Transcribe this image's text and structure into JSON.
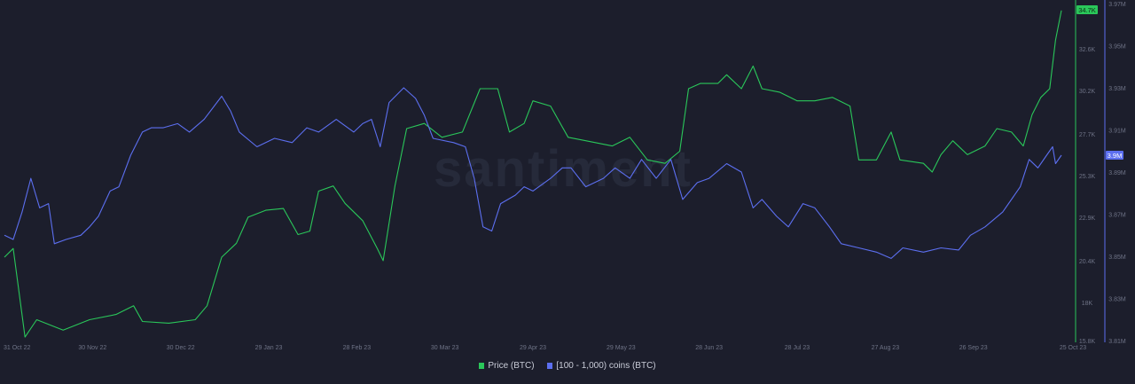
{
  "chart_data": {
    "type": "line",
    "title": "",
    "watermark": "santiment",
    "x_unit": "days since 31 Oct 22",
    "xlim": [
      0,
      360
    ],
    "x_ticks": [
      {
        "day": 0,
        "label": "31 Oct 22"
      },
      {
        "day": 30,
        "label": "30 Nov 22"
      },
      {
        "day": 60,
        "label": "30 Dec 22"
      },
      {
        "day": 90,
        "label": "29 Jan 23"
      },
      {
        "day": 120,
        "label": "28 Feb 23"
      },
      {
        "day": 150,
        "label": "30 Mar 23"
      },
      {
        "day": 180,
        "label": "29 Apr 23"
      },
      {
        "day": 210,
        "label": "29 May 23"
      },
      {
        "day": 240,
        "label": "28 Jun 23"
      },
      {
        "day": 270,
        "label": "28 Jul 23"
      },
      {
        "day": 300,
        "label": "27 Aug 23"
      },
      {
        "day": 330,
        "label": "26 Sep 23"
      },
      {
        "day": 359,
        "label": "25 Oct 23"
      }
    ],
    "axes": {
      "price": {
        "ylim_k": [
          15.8,
          35.2
        ],
        "ticks": [
          "15.8K",
          "18K",
          "20.4K",
          "22.9K",
          "25.3K",
          "27.7K",
          "30.2K",
          "32.6K"
        ],
        "tick_values": [
          15.8,
          18.0,
          20.4,
          22.9,
          25.3,
          27.7,
          30.2,
          32.6
        ],
        "current_label": "34.7K"
      },
      "holdings": {
        "ylim_m": [
          3.81,
          3.97
        ],
        "ticks": [
          "3.81M",
          "3.83M",
          "3.85M",
          "3.87M",
          "3.89M",
          "3.91M",
          "3.93M",
          "3.95M",
          "3.97M"
        ],
        "tick_values": [
          3.81,
          3.83,
          3.85,
          3.87,
          3.89,
          3.91,
          3.93,
          3.95,
          3.97
        ],
        "current_label": "3.9M"
      }
    },
    "series": [
      {
        "name": "Price (BTC)",
        "color": "#2ac75a",
        "axis": "price",
        "unit": "K USD",
        "points": [
          [
            0,
            20.6
          ],
          [
            3,
            21.1
          ],
          [
            7,
            16.0
          ],
          [
            11,
            17.0
          ],
          [
            20,
            16.4
          ],
          [
            29,
            17.0
          ],
          [
            38,
            17.3
          ],
          [
            44,
            17.8
          ],
          [
            47,
            16.9
          ],
          [
            56,
            16.8
          ],
          [
            65,
            17.0
          ],
          [
            69,
            17.8
          ],
          [
            74,
            20.6
          ],
          [
            79,
            21.4
          ],
          [
            83,
            22.9
          ],
          [
            89,
            23.3
          ],
          [
            95,
            23.4
          ],
          [
            100,
            21.9
          ],
          [
            104,
            22.1
          ],
          [
            107,
            24.4
          ],
          [
            112,
            24.7
          ],
          [
            116,
            23.7
          ],
          [
            122,
            22.7
          ],
          [
            127,
            21.1
          ],
          [
            129,
            20.4
          ],
          [
            133,
            24.7
          ],
          [
            137,
            28.0
          ],
          [
            143,
            28.3
          ],
          [
            149,
            27.5
          ],
          [
            156,
            27.8
          ],
          [
            162,
            30.3
          ],
          [
            168,
            30.3
          ],
          [
            172,
            27.8
          ],
          [
            177,
            28.3
          ],
          [
            180,
            29.6
          ],
          [
            186,
            29.3
          ],
          [
            192,
            27.5
          ],
          [
            198,
            27.3
          ],
          [
            207,
            27.0
          ],
          [
            213,
            27.5
          ],
          [
            219,
            26.2
          ],
          [
            225,
            26.0
          ],
          [
            230,
            26.7
          ],
          [
            233,
            30.3
          ],
          [
            237,
            30.6
          ],
          [
            243,
            30.6
          ],
          [
            246,
            31.1
          ],
          [
            251,
            30.3
          ],
          [
            255,
            31.6
          ],
          [
            258,
            30.3
          ],
          [
            264,
            30.1
          ],
          [
            270,
            29.6
          ],
          [
            276,
            29.6
          ],
          [
            282,
            29.8
          ],
          [
            288,
            29.3
          ],
          [
            291,
            26.2
          ],
          [
            297,
            26.2
          ],
          [
            302,
            27.8
          ],
          [
            305,
            26.2
          ],
          [
            313,
            26.0
          ],
          [
            316,
            25.5
          ],
          [
            319,
            26.5
          ],
          [
            323,
            27.3
          ],
          [
            328,
            26.5
          ],
          [
            334,
            27.0
          ],
          [
            338,
            28.0
          ],
          [
            343,
            27.8
          ],
          [
            347,
            27.0
          ],
          [
            350,
            28.8
          ],
          [
            353,
            29.8
          ],
          [
            356,
            30.3
          ],
          [
            358,
            33.1
          ],
          [
            360,
            34.8
          ]
        ]
      },
      {
        "name": "[100 - 1,000) coins (BTC)",
        "color": "#5c6ff0",
        "axis": "holdings",
        "unit": "M BTC",
        "points": [
          [
            0,
            3.86
          ],
          [
            3,
            3.858
          ],
          [
            6,
            3.871
          ],
          [
            9,
            3.887
          ],
          [
            12,
            3.873
          ],
          [
            15,
            3.875
          ],
          [
            17,
            3.856
          ],
          [
            21,
            3.858
          ],
          [
            26,
            3.86
          ],
          [
            29,
            3.864
          ],
          [
            32,
            3.869
          ],
          [
            36,
            3.881
          ],
          [
            39,
            3.883
          ],
          [
            43,
            3.898
          ],
          [
            47,
            3.909
          ],
          [
            50,
            3.911
          ],
          [
            54,
            3.911
          ],
          [
            59,
            3.913
          ],
          [
            63,
            3.909
          ],
          [
            68,
            3.915
          ],
          [
            74,
            3.926
          ],
          [
            77,
            3.919
          ],
          [
            80,
            3.909
          ],
          [
            86,
            3.902
          ],
          [
            92,
            3.906
          ],
          [
            98,
            3.904
          ],
          [
            103,
            3.911
          ],
          [
            107,
            3.909
          ],
          [
            113,
            3.915
          ],
          [
            119,
            3.909
          ],
          [
            122,
            3.913
          ],
          [
            125,
            3.915
          ],
          [
            128,
            3.902
          ],
          [
            131,
            3.923
          ],
          [
            136,
            3.93
          ],
          [
            140,
            3.925
          ],
          [
            143,
            3.917
          ],
          [
            146,
            3.906
          ],
          [
            153,
            3.904
          ],
          [
            157,
            3.902
          ],
          [
            160,
            3.887
          ],
          [
            163,
            3.864
          ],
          [
            166,
            3.862
          ],
          [
            169,
            3.875
          ],
          [
            174,
            3.879
          ],
          [
            177,
            3.883
          ],
          [
            180,
            3.881
          ],
          [
            186,
            3.887
          ],
          [
            190,
            3.892
          ],
          [
            193,
            3.892
          ],
          [
            198,
            3.883
          ],
          [
            204,
            3.887
          ],
          [
            208,
            3.892
          ],
          [
            213,
            3.887
          ],
          [
            217,
            3.896
          ],
          [
            222,
            3.887
          ],
          [
            227,
            3.896
          ],
          [
            231,
            3.877
          ],
          [
            236,
            3.885
          ],
          [
            240,
            3.887
          ],
          [
            246,
            3.894
          ],
          [
            251,
            3.89
          ],
          [
            255,
            3.873
          ],
          [
            258,
            3.877
          ],
          [
            263,
            3.869
          ],
          [
            267,
            3.864
          ],
          [
            272,
            3.875
          ],
          [
            276,
            3.873
          ],
          [
            281,
            3.864
          ],
          [
            285,
            3.856
          ],
          [
            291,
            3.854
          ],
          [
            297,
            3.852
          ],
          [
            302,
            3.849
          ],
          [
            306,
            3.854
          ],
          [
            313,
            3.852
          ],
          [
            319,
            3.854
          ],
          [
            325,
            3.853
          ],
          [
            329,
            3.86
          ],
          [
            334,
            3.864
          ],
          [
            340,
            3.871
          ],
          [
            346,
            3.883
          ],
          [
            349,
            3.896
          ],
          [
            352,
            3.892
          ],
          [
            355,
            3.898
          ],
          [
            357,
            3.902
          ],
          [
            358,
            3.894
          ],
          [
            360,
            3.898
          ]
        ]
      }
    ],
    "legend": {
      "position": "bottom-center",
      "items": [
        "Price (BTC)",
        "[100 - 1,000) coins (BTC)"
      ]
    }
  }
}
